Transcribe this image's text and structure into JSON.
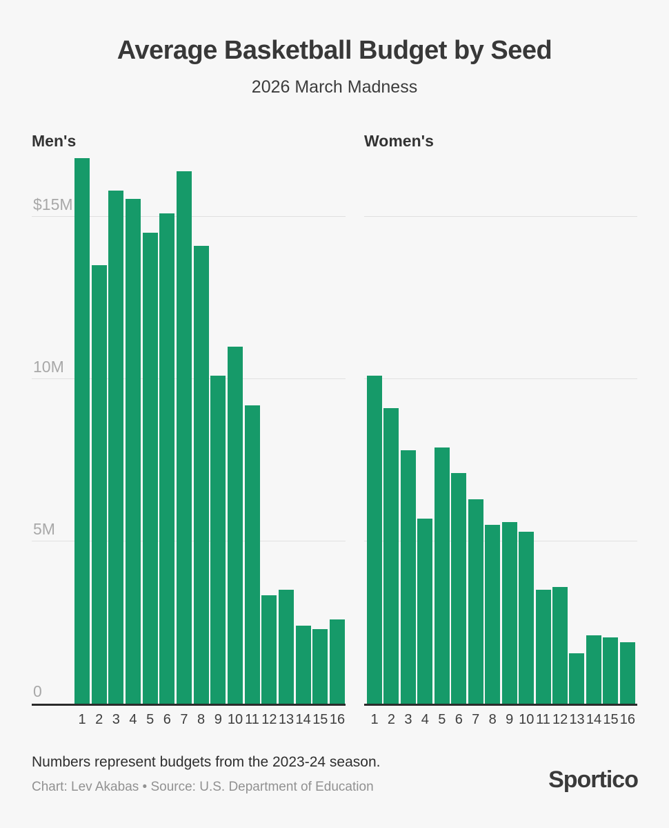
{
  "header": {
    "title": "Average Basketball Budget by Seed",
    "subtitle": "2026 March Madness"
  },
  "footer": {
    "note": "Numbers represent budgets from the 2023-24 season.",
    "credit": "Chart: Lev Akabas • Source: U.S. Department of Education",
    "brand": "Sportico"
  },
  "colors": {
    "bar": "#169a69",
    "background": "#f7f7f7",
    "gridline": "#e0e0e0",
    "axis": "#2b2b2b",
    "tick_text": "#a8a8a8",
    "dark_text": "#383838"
  },
  "chart_data": [
    {
      "type": "bar",
      "title": "Men's",
      "categories": [
        "1",
        "2",
        "3",
        "4",
        "5",
        "6",
        "7",
        "8",
        "9",
        "10",
        "11",
        "12",
        "13",
        "14",
        "15",
        "16"
      ],
      "values": [
        16.8,
        13.5,
        15.8,
        15.55,
        14.5,
        15.1,
        16.4,
        14.1,
        10.1,
        11.0,
        9.2,
        3.35,
        3.5,
        2.4,
        2.3,
        2.6
      ],
      "xlabel": "",
      "ylabel": "",
      "ylim": [
        0,
        17
      ],
      "grid_values": [
        5,
        10,
        15
      ],
      "y_ticks": [
        {
          "value": 15,
          "label": "$15M"
        },
        {
          "value": 10,
          "label": "10M"
        },
        {
          "value": 5,
          "label": "5M"
        },
        {
          "value": 0,
          "label": "0"
        }
      ],
      "legend": "none",
      "grid": "horizontal"
    },
    {
      "type": "bar",
      "title": "Women's",
      "categories": [
        "1",
        "2",
        "3",
        "4",
        "5",
        "6",
        "7",
        "8",
        "9",
        "10",
        "11",
        "12",
        "13",
        "14",
        "15",
        "16"
      ],
      "values": [
        10.1,
        9.1,
        7.8,
        5.7,
        7.9,
        7.1,
        6.3,
        5.5,
        5.6,
        5.3,
        3.5,
        3.6,
        1.55,
        2.1,
        2.05,
        1.9
      ],
      "xlabel": "",
      "ylabel": "",
      "ylim": [
        0,
        17
      ],
      "grid_values": [
        5,
        10,
        15
      ],
      "y_ticks": [],
      "legend": "none",
      "grid": "horizontal"
    }
  ]
}
